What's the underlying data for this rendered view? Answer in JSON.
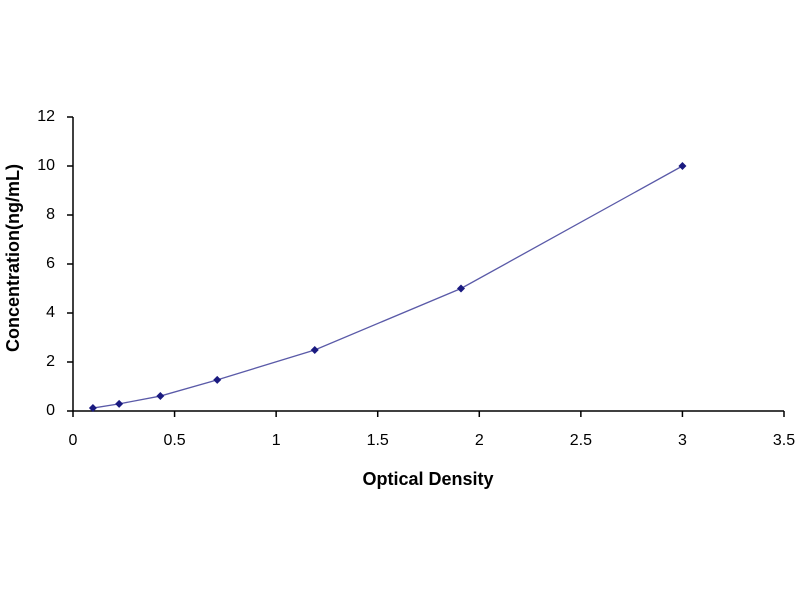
{
  "chart_data": {
    "type": "scatter",
    "x_label": "Optical Density",
    "y_label": "Concentration(ng/mL)",
    "x": [
      0.098,
      0.227,
      0.43,
      0.71,
      1.19,
      1.91,
      3.0
    ],
    "values": [
      0.12,
      0.29,
      0.61,
      1.27,
      2.49,
      5.0,
      10.0
    ],
    "color": "#1a1a80",
    "line_color": "#5a5aa8",
    "connect": true,
    "xlim": [
      0,
      3.5
    ],
    "xticks": [
      0,
      0.5,
      1,
      1.5,
      2,
      2.5,
      3,
      3.5
    ],
    "ylim": [
      0,
      12
    ],
    "yticks": [
      0,
      2,
      4,
      6,
      8,
      10,
      12
    ],
    "grid": false
  }
}
